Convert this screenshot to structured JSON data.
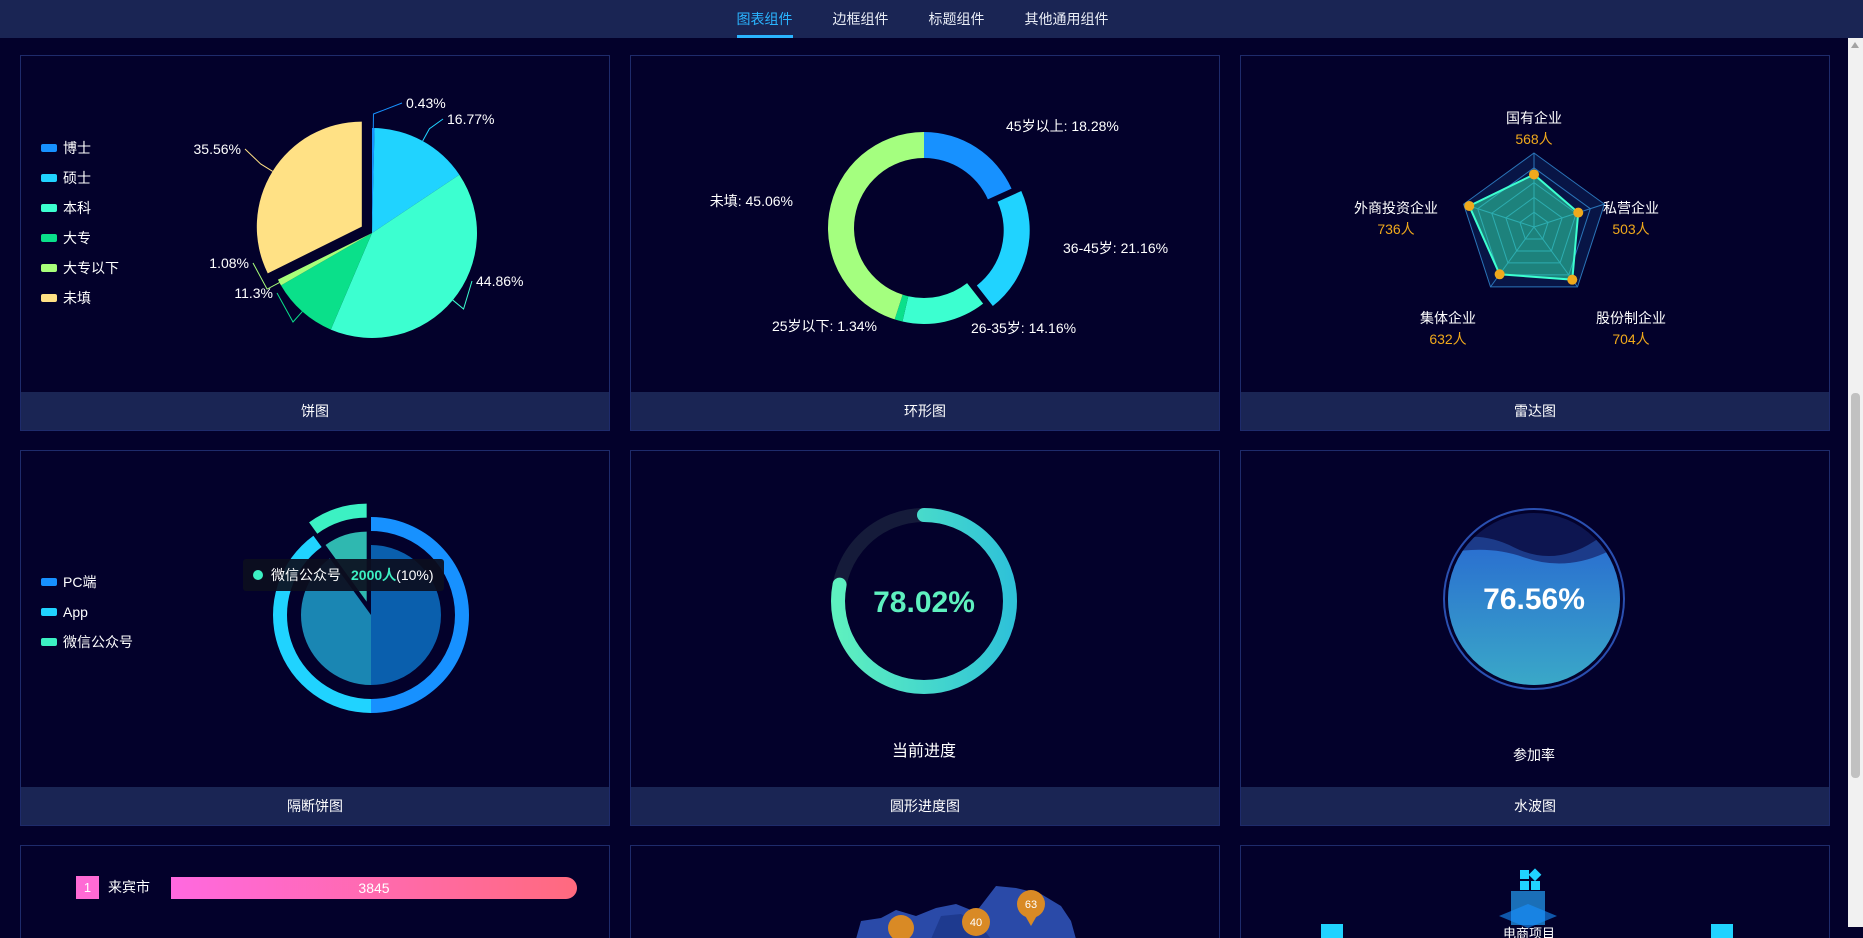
{
  "nav": {
    "tabs": [
      {
        "label": "图表组件",
        "active": true
      },
      {
        "label": "边框组件",
        "active": false
      },
      {
        "label": "标题组件",
        "active": false
      },
      {
        "label": "其他通用组件",
        "active": false
      }
    ]
  },
  "cards": {
    "pie": {
      "footer": "饼图"
    },
    "ring": {
      "footer": "环形图"
    },
    "radar": {
      "footer": "雷达图"
    },
    "gap_pie": {
      "footer": "隔断饼图"
    },
    "progress": {
      "footer": "圆形进度图"
    },
    "water": {
      "footer": "水波图"
    }
  },
  "chart_data": [
    {
      "type": "pie",
      "title": "饼图",
      "legend": [
        "博士",
        "硕士",
        "本科",
        "大专",
        "大专以下",
        "未填"
      ],
      "colors": [
        "#1791ff",
        "#20d3ff",
        "#3cffd0",
        "#0ae08a",
        "#a8ff7a",
        "#ffe185"
      ],
      "values": [
        0.43,
        16.77,
        44.86,
        11.3,
        1.08,
        35.56
      ],
      "labels": [
        "0.43%",
        "16.77%",
        "44.86%",
        "11.3%",
        "1.08%",
        "35.56%"
      ],
      "exploded": "未填"
    },
    {
      "type": "pie",
      "title": "环形图",
      "categories": [
        "45岁以上",
        "36-45岁",
        "26-35岁",
        "25岁以下",
        "未填"
      ],
      "colors": [
        "#1791ff",
        "#20d3ff",
        "#3cffd0",
        "#0ae08a",
        "#a4ff7f"
      ],
      "values": [
        18.28,
        21.16,
        14.16,
        1.34,
        45.06
      ],
      "labels": [
        "45岁以上: 18.28%",
        "36-45岁: 21.16%",
        "26-35岁: 14.16%",
        "25岁以下: 1.34%",
        "未填: 45.06%"
      ],
      "exploded": "36-45岁"
    },
    {
      "type": "radar",
      "title": "雷达图",
      "indicators": [
        "国有企业",
        "私营企业",
        "股份制企业",
        "集体企业",
        "外商投资企业"
      ],
      "values": [
        568,
        503,
        704,
        632,
        736
      ],
      "value_labels": [
        "568人",
        "503人",
        "704人",
        "632人",
        "736人"
      ]
    },
    {
      "type": "pie",
      "title": "隔断饼图",
      "legend": [
        "PC端",
        "App",
        "微信公众号"
      ],
      "colors": [
        "#1791ff",
        "#20d3ff",
        "#3cf1c3"
      ],
      "values": [
        50,
        40,
        10
      ],
      "tooltip": {
        "name": "微信公众号",
        "value": "2000人",
        "percent": "(10%)"
      }
    },
    {
      "type": "gauge",
      "title": "圆形进度图",
      "value": 78.02,
      "value_label": "78.02%",
      "caption": "当前进度"
    },
    {
      "type": "liquid",
      "title": "水波图",
      "value": 76.56,
      "value_label": "76.56%",
      "caption": "参加率"
    }
  ],
  "bottom_row": {
    "rank_item": {
      "rank": "1",
      "name": "来宾市",
      "value": "3845"
    },
    "map_pins": [
      "40",
      "63"
    ],
    "project_label": "电商项目"
  },
  "colors": {
    "background": "#03012b",
    "panel": "#1a2554",
    "accent": "#2ab4ff"
  }
}
